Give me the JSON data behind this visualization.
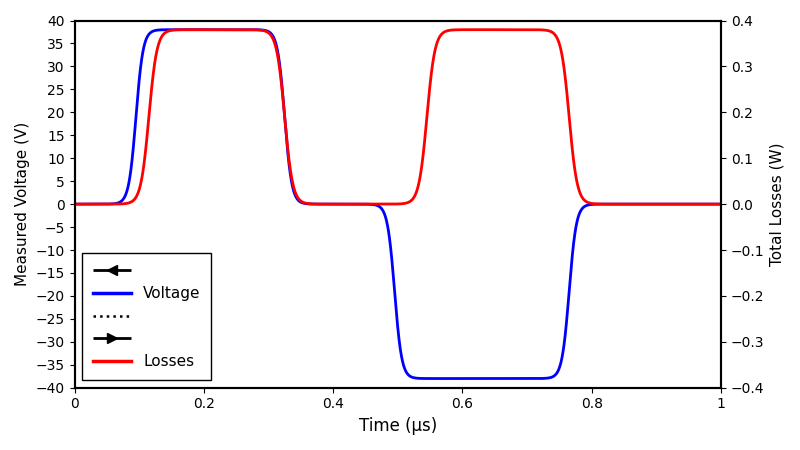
{
  "xlabel": "Time (μs)",
  "ylabel_left": "Measured Voltage (V)",
  "ylabel_right": "Total Losses (W)",
  "xlim": [
    0,
    1
  ],
  "ylim_left": [
    -40,
    40
  ],
  "ylim_right": [
    -0.4,
    0.4
  ],
  "yticks_left": [
    -40,
    -35,
    -30,
    -25,
    -20,
    -15,
    -10,
    -5,
    0,
    5,
    10,
    15,
    20,
    25,
    30,
    35,
    40
  ],
  "yticks_right": [
    -0.4,
    -0.3,
    -0.2,
    -0.1,
    0,
    0.1,
    0.2,
    0.3,
    0.4
  ],
  "xticks": [
    0,
    0.2,
    0.4,
    0.6,
    0.8,
    1.0
  ],
  "xtick_labels": [
    "0",
    "0.2",
    "0.4",
    "0.6",
    "0.8",
    "1"
  ],
  "voltage_color": "#0000ff",
  "losses_color": "#ff0000",
  "linewidth": 2.0,
  "background_color": "#ffffff",
  "legend_voltage_label": "Voltage",
  "legend_losses_label": "Losses",
  "v_amplitude": 38.0,
  "l_amplitude": 0.38,
  "blue_rise1": 0.095,
  "blue_fall1": 0.325,
  "blue_rise2": 0.495,
  "blue_fall2": 0.765,
  "red_rise1": 0.115,
  "red_fall1": 0.325,
  "red_rise2": 0.545,
  "red_fall2": 0.765,
  "blue_steepness": 180,
  "red_steepness": 160,
  "figwidth": 8.0,
  "figheight": 4.5,
  "dpi": 100
}
